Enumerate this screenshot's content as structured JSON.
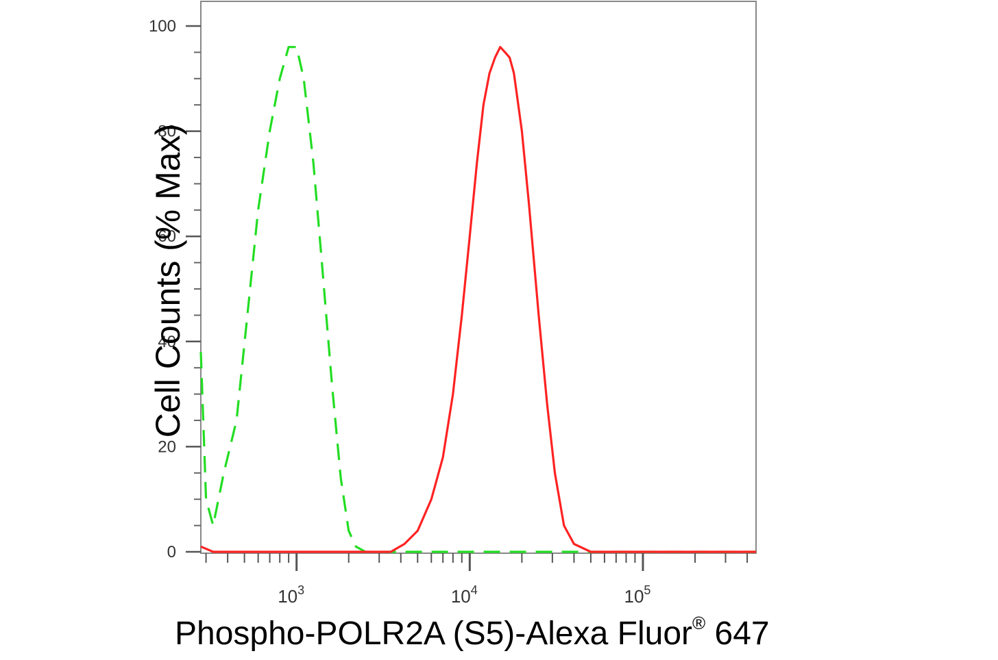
{
  "chart_data": {
    "type": "line",
    "title": "",
    "xlabel_main": "Phospho-POLR2A (S5)-Alexa Fluor",
    "xlabel_sup": "®",
    "xlabel_tail": " 647",
    "ylabel": "Cell Counts (% Max)",
    "x_scale": "log",
    "xlim": [
      280,
      450000
    ],
    "ylim": [
      0,
      105
    ],
    "x_ticks": [
      {
        "base": "10",
        "exp": "3",
        "value": 1000
      },
      {
        "base": "10",
        "exp": "4",
        "value": 10000
      },
      {
        "base": "10",
        "exp": "5",
        "value": 100000
      }
    ],
    "y_ticks": [
      "0",
      "20",
      "40",
      "60",
      "80",
      "100"
    ],
    "series": [
      {
        "color": "#22dd22",
        "style": "dashed",
        "points": [
          [
            280,
            38
          ],
          [
            300,
            10
          ],
          [
            330,
            5
          ],
          [
            380,
            15
          ],
          [
            450,
            25
          ],
          [
            520,
            45
          ],
          [
            600,
            65
          ],
          [
            700,
            80
          ],
          [
            800,
            90
          ],
          [
            900,
            96
          ],
          [
            1000,
            96
          ],
          [
            1100,
            90
          ],
          [
            1250,
            74
          ],
          [
            1400,
            55
          ],
          [
            1600,
            32
          ],
          [
            1800,
            14
          ],
          [
            2000,
            4
          ],
          [
            2200,
            1
          ],
          [
            2500,
            0
          ],
          [
            3000,
            0
          ],
          [
            10000,
            0
          ],
          [
            100000,
            0
          ],
          [
            450000,
            0
          ]
        ]
      },
      {
        "color": "#ff2222",
        "style": "solid",
        "points": [
          [
            280,
            1
          ],
          [
            330,
            0
          ],
          [
            1000,
            0
          ],
          [
            2500,
            0
          ],
          [
            3500,
            0
          ],
          [
            4200,
            1.5
          ],
          [
            5000,
            4
          ],
          [
            6000,
            10
          ],
          [
            7000,
            18
          ],
          [
            8000,
            30
          ],
          [
            9000,
            45
          ],
          [
            10000,
            60
          ],
          [
            11000,
            74
          ],
          [
            12000,
            85
          ],
          [
            13000,
            91
          ],
          [
            14000,
            94
          ],
          [
            15000,
            96
          ],
          [
            16000,
            95
          ],
          [
            17000,
            94
          ],
          [
            18000,
            91
          ],
          [
            20000,
            80
          ],
          [
            22000,
            66
          ],
          [
            25000,
            45
          ],
          [
            28000,
            28
          ],
          [
            31000,
            15
          ],
          [
            35000,
            5
          ],
          [
            40000,
            1.5
          ],
          [
            50000,
            0
          ],
          [
            100000,
            0
          ],
          [
            450000,
            0
          ]
        ]
      }
    ]
  }
}
